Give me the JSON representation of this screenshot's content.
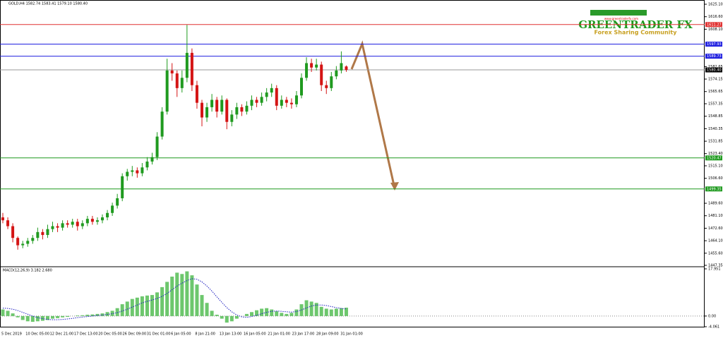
{
  "chart_data": {
    "type": "candlestick",
    "header": "GOLD,H4  1582.74 1583.41 1579.10 1580.40",
    "up_color": "#1f9a1f",
    "down_color": "#d41414",
    "ylim": [
      1447.35,
      1625.1
    ],
    "yticks": [
      {
        "value": 1625.1,
        "label": "1625.10"
      },
      {
        "value": 1616.6,
        "label": "1616.60"
      },
      {
        "value": 1608.1,
        "label": "1608.10"
      },
      {
        "value": 1582.65,
        "label": "1582.65"
      },
      {
        "value": 1574.15,
        "label": "1574.15"
      },
      {
        "value": 1565.65,
        "label": "1565.65"
      },
      {
        "value": 1557.35,
        "label": "1557.35"
      },
      {
        "value": 1548.85,
        "label": "1548.85"
      },
      {
        "value": 1540.35,
        "label": "1540.35"
      },
      {
        "value": 1531.85,
        "label": "1531.85"
      },
      {
        "value": 1523.4,
        "label": "1523.40"
      },
      {
        "value": 1515.1,
        "label": "1515.10"
      },
      {
        "value": 1506.6,
        "label": "1506.60"
      },
      {
        "value": 1489.6,
        "label": "1489.60"
      },
      {
        "value": 1481.1,
        "label": "1481.10"
      },
      {
        "value": 1472.6,
        "label": "1472.60"
      },
      {
        "value": 1464.1,
        "label": "1464.10"
      },
      {
        "value": 1455.6,
        "label": "1455.60"
      },
      {
        "value": 1447.35,
        "label": "1447.35"
      }
    ],
    "levels": [
      {
        "value": 1611.27,
        "label": "1611.27",
        "color": "#e03030"
      },
      {
        "value": 1597.93,
        "label": "1597.93",
        "color": "#2020e0"
      },
      {
        "value": 1589.73,
        "label": "1589.73",
        "color": "#2020e0"
      },
      {
        "value": 1580.4,
        "label": "1580.40",
        "color": "#000000"
      },
      {
        "value": 1520.47,
        "label": "1520.47",
        "color": "#1f9a1f"
      },
      {
        "value": 1499.35,
        "label": "1499.35",
        "color": "#1f9a1f"
      }
    ],
    "x_labels": [
      "5 Dec 2019",
      "10 Dec 05:00",
      "12 Dec 21:00",
      "17 Dec 13:00",
      "20 Dec 05:00",
      "26 Dec 09:00",
      "31 Dec 01:00",
      "6 Jan 05:00",
      "8 Jan 21:00",
      "13 Jan 13:00",
      "16 Jan 05:00",
      "21 Jan 01:00",
      "23 Jan 17:00",
      "28 Jan 09:00",
      "31 Jan 01:00"
    ],
    "candles": [
      [
        1480,
        1483,
        1476,
        1478
      ],
      [
        1478,
        1480,
        1472,
        1474
      ],
      [
        1474,
        1476,
        1463,
        1466
      ],
      [
        1466,
        1467,
        1458,
        1461
      ],
      [
        1461,
        1464,
        1459,
        1462
      ],
      [
        1462,
        1466,
        1460,
        1464
      ],
      [
        1464,
        1468,
        1462,
        1466
      ],
      [
        1466,
        1473,
        1464,
        1470
      ],
      [
        1470,
        1472,
        1465,
        1468
      ],
      [
        1468,
        1475,
        1466,
        1472
      ],
      [
        1472,
        1477,
        1470,
        1474
      ],
      [
        1474,
        1476,
        1470,
        1473
      ],
      [
        1473,
        1478,
        1471,
        1476
      ],
      [
        1476,
        1478,
        1473,
        1475
      ],
      [
        1475,
        1479,
        1473,
        1477
      ],
      [
        1477,
        1479,
        1471,
        1474
      ],
      [
        1474,
        1478,
        1472,
        1476
      ],
      [
        1476,
        1481,
        1474,
        1479
      ],
      [
        1479,
        1481,
        1475,
        1477
      ],
      [
        1477,
        1480,
        1475,
        1478
      ],
      [
        1478,
        1482,
        1476,
        1480
      ],
      [
        1480,
        1485,
        1478,
        1483
      ],
      [
        1483,
        1490,
        1481,
        1488
      ],
      [
        1488,
        1496,
        1486,
        1493
      ],
      [
        1493,
        1510,
        1491,
        1508
      ],
      [
        1508,
        1513,
        1505,
        1511
      ],
      [
        1511,
        1515,
        1508,
        1512
      ],
      [
        1512,
        1514,
        1507,
        1510
      ],
      [
        1510,
        1517,
        1508,
        1514
      ],
      [
        1514,
        1521,
        1512,
        1518
      ],
      [
        1518,
        1524,
        1516,
        1521
      ],
      [
        1521,
        1538,
        1519,
        1535
      ],
      [
        1535,
        1555,
        1533,
        1552
      ],
      [
        1552,
        1588,
        1550,
        1580
      ],
      [
        1580,
        1585,
        1573,
        1578
      ],
      [
        1578,
        1580,
        1562,
        1568
      ],
      [
        1568,
        1580,
        1565,
        1575
      ],
      [
        1575,
        1611,
        1572,
        1592
      ],
      [
        1592,
        1595,
        1566,
        1570
      ],
      [
        1570,
        1573,
        1554,
        1558
      ],
      [
        1558,
        1560,
        1542,
        1548
      ],
      [
        1548,
        1558,
        1545,
        1555
      ],
      [
        1555,
        1564,
        1552,
        1560
      ],
      [
        1560,
        1562,
        1548,
        1552
      ],
      [
        1552,
        1563,
        1550,
        1560
      ],
      [
        1560,
        1561,
        1540,
        1545
      ],
      [
        1545,
        1553,
        1542,
        1550
      ],
      [
        1550,
        1558,
        1547,
        1555
      ],
      [
        1555,
        1557,
        1549,
        1552
      ],
      [
        1552,
        1559,
        1550,
        1556
      ],
      [
        1556,
        1563,
        1553,
        1560
      ],
      [
        1560,
        1562,
        1555,
        1558
      ],
      [
        1558,
        1565,
        1556,
        1562
      ],
      [
        1562,
        1568,
        1559,
        1565
      ],
      [
        1565,
        1571,
        1562,
        1568
      ],
      [
        1568,
        1570,
        1553,
        1556
      ],
      [
        1556,
        1563,
        1554,
        1560
      ],
      [
        1560,
        1562,
        1555,
        1558
      ],
      [
        1558,
        1561,
        1554,
        1557
      ],
      [
        1557,
        1566,
        1555,
        1563
      ],
      [
        1563,
        1578,
        1561,
        1575
      ],
      [
        1575,
        1589,
        1573,
        1585
      ],
      [
        1585,
        1588,
        1579,
        1582
      ],
      [
        1582,
        1588,
        1580,
        1584
      ],
      [
        1584,
        1586,
        1566,
        1570
      ],
      [
        1570,
        1573,
        1564,
        1568
      ],
      [
        1568,
        1579,
        1566,
        1576
      ],
      [
        1576,
        1583,
        1574,
        1580
      ],
      [
        1580,
        1593,
        1578,
        1585
      ],
      [
        1582.74,
        1583.41,
        1579.1,
        1580.4
      ]
    ],
    "macd": {
      "label": "MACD(12,26,9) 3.182 2.680",
      "ylim": [
        -4.061,
        17.951
      ],
      "yticks": [
        {
          "value": 17.951,
          "label": "17.951"
        },
        {
          "value": 0,
          "label": "0.00"
        },
        {
          "value": -4.061,
          "label": "-4.061"
        }
      ],
      "hist_color": "#3cb43c",
      "signal_color": "#2020c0",
      "histogram": [
        2.5,
        2,
        1,
        -0.5,
        -1.5,
        -2,
        -2.2,
        -2,
        -1.8,
        -1.5,
        -1,
        -0.8,
        -0.5,
        -0.3,
        0,
        0.2,
        0.3,
        0.5,
        0.6,
        0.8,
        1,
        1.5,
        2,
        3,
        4.5,
        5.5,
        6.5,
        7,
        7.5,
        7.8,
        8,
        9,
        11,
        13,
        15,
        16.5,
        16,
        17,
        15.5,
        12,
        8,
        5,
        2,
        0.5,
        -1,
        -2.5,
        -2,
        -1,
        0,
        0.8,
        1.5,
        2.2,
        2.8,
        3,
        2.5,
        1.8,
        1.2,
        0.8,
        1.2,
        2.5,
        4.5,
        6,
        5.5,
        5,
        3.5,
        2.8,
        2.5,
        2.8,
        3,
        3.182
      ],
      "signal": [
        3,
        2.9,
        2.6,
        2.1,
        1.4,
        0.7,
        0,
        -0.6,
        -1,
        -1.3,
        -1.4,
        -1.4,
        -1.3,
        -1.1,
        -0.9,
        -0.6,
        -0.4,
        -0.2,
        0,
        0.2,
        0.4,
        0.6,
        0.9,
        1.3,
        1.9,
        2.6,
        3.4,
        4.2,
        5,
        5.6,
        6.1,
        6.7,
        7.5,
        8.6,
        10,
        11.4,
        12.5,
        13.5,
        14.2,
        14,
        13,
        11.4,
        9.5,
        7.3,
        5.2,
        3.2,
        1.6,
        0.4,
        -0.3,
        -0.5,
        -0.2,
        0.3,
        0.9,
        1.4,
        1.8,
        1.9,
        1.8,
        1.6,
        1.5,
        1.7,
        2.3,
        3.1,
        3.8,
        4.2,
        4.2,
        4,
        3.6,
        3.2,
        2.9,
        2.68
      ]
    },
    "logo": {
      "name": "GREENTRADER FX",
      "url": "www.greentraderfx.com",
      "tagline": "Forex Sharing Community"
    }
  }
}
